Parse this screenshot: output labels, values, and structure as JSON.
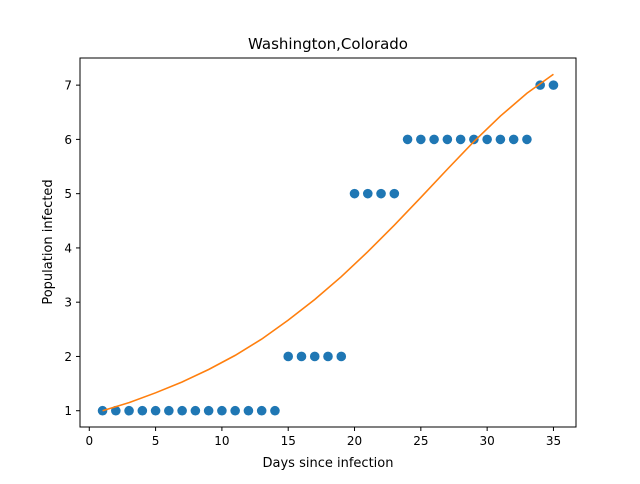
{
  "chart_data": {
    "type": "scatter",
    "title": "Washington,Colorado",
    "xlabel": "Days since infection",
    "ylabel": "Population infected",
    "xlim": [
      -0.7,
      36.7
    ],
    "ylim": [
      0.7,
      7.5
    ],
    "xticks": [
      0,
      5,
      10,
      15,
      20,
      25,
      30,
      35
    ],
    "yticks": [
      1,
      2,
      3,
      4,
      5,
      6,
      7
    ],
    "grid": false,
    "series": [
      {
        "kind": "scatter",
        "color": "#1f77b4",
        "x": [
          1,
          2,
          3,
          4,
          5,
          6,
          7,
          8,
          9,
          10,
          11,
          12,
          13,
          14,
          15,
          16,
          17,
          18,
          19,
          20,
          21,
          22,
          23,
          24,
          25,
          26,
          27,
          28,
          29,
          30,
          31,
          32,
          33,
          34,
          35
        ],
        "y": [
          1,
          1,
          1,
          1,
          1,
          1,
          1,
          1,
          1,
          1,
          1,
          1,
          1,
          1,
          2,
          2,
          2,
          2,
          2,
          5,
          5,
          5,
          5,
          6,
          6,
          6,
          6,
          6,
          6,
          6,
          6,
          6,
          6,
          7,
          7
        ]
      },
      {
        "kind": "line",
        "color": "#ff7f0e",
        "x": [
          1,
          3,
          5,
          7,
          9,
          11,
          13,
          15,
          17,
          19,
          21,
          23,
          25,
          27,
          29,
          31,
          33,
          35
        ],
        "y": [
          1.0,
          1.15,
          1.33,
          1.53,
          1.76,
          2.02,
          2.32,
          2.67,
          3.05,
          3.47,
          3.93,
          4.42,
          4.93,
          5.45,
          5.96,
          6.43,
          6.85,
          7.2
        ]
      }
    ]
  }
}
